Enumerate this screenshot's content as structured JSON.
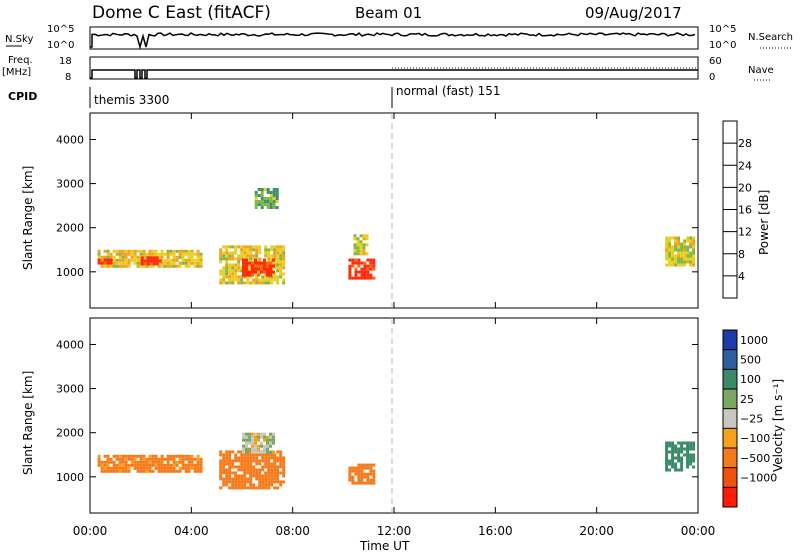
{
  "header": {
    "title": "Dome C East (fitACF)",
    "beam": "Beam 01",
    "date": "09/Aug/2017"
  },
  "labels": {
    "nsky": "N.Sky",
    "nsearch": "N.Search",
    "freq": "Freq.",
    "freq_unit": "[MHz]",
    "nave": "Nave",
    "cpid": "CPID",
    "cpid1": "themis 3300",
    "cpid2": "normal (fast) 151",
    "ylabel": "Slant Range [km]",
    "xlabel": "Time UT",
    "power_label": "Power [dB]",
    "velocity_label": "Velocity [m s⁻¹]"
  },
  "aux_ticks": {
    "noise_left": [
      "10^5",
      "10^0"
    ],
    "noise_right": [
      "10^5",
      "10^0"
    ],
    "freq_left": [
      "18",
      "8"
    ],
    "nave_right": [
      "60",
      "0"
    ]
  },
  "chart_data": [
    {
      "type": "heatmap",
      "name": "Power",
      "x_ticks": [
        "00:00",
        "04:00",
        "08:00",
        "12:00",
        "16:00",
        "20:00",
        "00:00"
      ],
      "x_hours": [
        0,
        4,
        8,
        12,
        16,
        20,
        24
      ],
      "y_ticks": [
        1000,
        2000,
        3000,
        4000
      ],
      "ylim": [
        180,
        4600
      ],
      "xlim": [
        0,
        24
      ],
      "colorbar": {
        "ticks": [
          "4",
          "8",
          "12",
          "16",
          "20",
          "24",
          "28"
        ],
        "colors": [
          "#1a1ae0",
          "#2a4aa0",
          "#3f8f6a",
          "#80b848",
          "#e8d020",
          "#f5a020",
          "#f26a10",
          "#ff2a0a"
        ]
      },
      "regions": [
        {
          "x": [
            0.3,
            4.5
          ],
          "range": [
            1100,
            1500
          ],
          "value": 18
        },
        {
          "x": [
            0.3,
            1.0
          ],
          "range": [
            1150,
            1300
          ],
          "value": 30
        },
        {
          "x": [
            2.0,
            2.8
          ],
          "range": [
            1150,
            1350
          ],
          "value": 29
        },
        {
          "x": [
            5.1,
            7.7
          ],
          "range": [
            700,
            1600
          ],
          "value": 18
        },
        {
          "x": [
            6.0,
            7.3
          ],
          "range": [
            900,
            1300
          ],
          "value": 29
        },
        {
          "x": [
            10.2,
            11.3
          ],
          "range": [
            800,
            1300
          ],
          "value": 30
        },
        {
          "x": [
            10.4,
            11.0
          ],
          "range": [
            1400,
            1850
          ],
          "value": 16
        },
        {
          "x": [
            6.5,
            7.5
          ],
          "range": [
            2400,
            2900
          ],
          "value": 12
        },
        {
          "x": [
            22.7,
            23.9
          ],
          "range": [
            1100,
            1800
          ],
          "value": 16
        }
      ]
    },
    {
      "type": "heatmap",
      "name": "Velocity",
      "x_ticks": [
        "00:00",
        "04:00",
        "08:00",
        "12:00",
        "16:00",
        "20:00",
        "00:00"
      ],
      "x_hours": [
        0,
        4,
        8,
        12,
        16,
        20,
        24
      ],
      "y_ticks": [
        1000,
        2000,
        3000,
        4000
      ],
      "ylim": [
        180,
        4600
      ],
      "xlim": [
        0,
        24
      ],
      "colorbar": {
        "ticks": [
          "1000",
          "500",
          "100",
          "25",
          "−25",
          "−100",
          "−500",
          "−1000"
        ],
        "colors": [
          "#1c3ca8",
          "#2f5fa0",
          "#3a8a6a",
          "#7aa860",
          "#c8c8c0",
          "#f5a21a",
          "#f57a1a",
          "#f05010",
          "#ff1a0a"
        ]
      },
      "regions": [
        {
          "x": [
            0.3,
            4.5
          ],
          "range": [
            1100,
            1500
          ],
          "value": -150
        },
        {
          "x": [
            5.1,
            7.7
          ],
          "range": [
            700,
            1600
          ],
          "value": -300
        },
        {
          "x": [
            6.0,
            7.3
          ],
          "range": [
            1500,
            2000
          ],
          "value": 0
        },
        {
          "x": [
            10.2,
            11.3
          ],
          "range": [
            800,
            1300
          ],
          "value": -300
        },
        {
          "x": [
            22.7,
            23.9
          ],
          "range": [
            1100,
            1800
          ],
          "value": 200
        }
      ]
    }
  ]
}
